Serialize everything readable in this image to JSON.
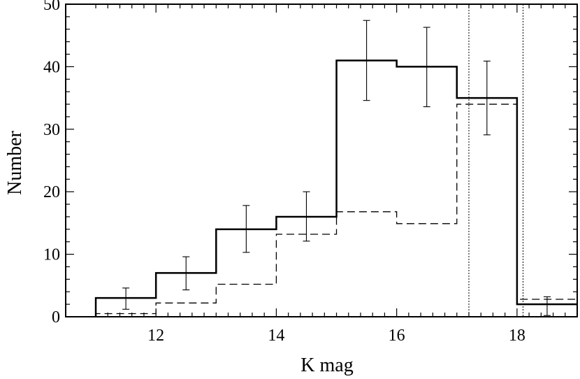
{
  "chart_data": {
    "type": "histogram",
    "xlabel": "K mag",
    "ylabel": "Number",
    "xlim": [
      10.5,
      19
    ],
    "ylim": [
      0,
      50
    ],
    "xticks": [
      12,
      14,
      16,
      18
    ],
    "yticks": [
      0,
      10,
      20,
      30,
      40,
      50
    ],
    "series": [
      {
        "style": "solid",
        "bins": [
          {
            "x0": 11,
            "x1": 12,
            "value": 3
          },
          {
            "x0": 12,
            "x1": 13,
            "value": 7
          },
          {
            "x0": 13,
            "x1": 14,
            "value": 14
          },
          {
            "x0": 14,
            "x1": 15,
            "value": 16
          },
          {
            "x0": 15,
            "x1": 16,
            "value": 41
          },
          {
            "x0": 16,
            "x1": 17,
            "value": 40
          },
          {
            "x0": 17,
            "x1": 18,
            "value": 35
          },
          {
            "x0": 18,
            "x1": 19,
            "value": 2
          }
        ]
      },
      {
        "style": "dashed",
        "bins": [
          {
            "x0": 11,
            "x1": 12,
            "value": 0.5
          },
          {
            "x0": 12,
            "x1": 13,
            "value": 2.2
          },
          {
            "x0": 13,
            "x1": 14,
            "value": 5.2
          },
          {
            "x0": 14,
            "x1": 15,
            "value": 13.2
          },
          {
            "x0": 15,
            "x1": 16,
            "value": 16.8
          },
          {
            "x0": 16,
            "x1": 17,
            "value": 14.9
          },
          {
            "x0": 17,
            "x1": 18,
            "value": 34
          },
          {
            "x0": 18,
            "x1": 19,
            "value": 2.8
          }
        ]
      }
    ],
    "error_bars": [
      {
        "x": 11.5,
        "y": 3,
        "low": 1.2,
        "high": 4.6
      },
      {
        "x": 12.5,
        "y": 7,
        "low": 4.3,
        "high": 9.6
      },
      {
        "x": 13.5,
        "y": 14,
        "low": 10.3,
        "high": 17.8
      },
      {
        "x": 14.5,
        "y": 16,
        "low": 12.1,
        "high": 20.0
      },
      {
        "x": 15.5,
        "y": 41,
        "low": 34.6,
        "high": 47.4
      },
      {
        "x": 16.5,
        "y": 40,
        "low": 33.6,
        "high": 46.3
      },
      {
        "x": 17.5,
        "y": 35,
        "low": 29.1,
        "high": 40.9
      },
      {
        "x": 18.5,
        "y": 2,
        "low": 0.2,
        "high": 3.2
      }
    ],
    "vlines": [
      {
        "x": 17.2,
        "style": "dotted"
      },
      {
        "x": 18.1,
        "style": "dotted"
      }
    ],
    "grid": false,
    "legend": "none"
  }
}
